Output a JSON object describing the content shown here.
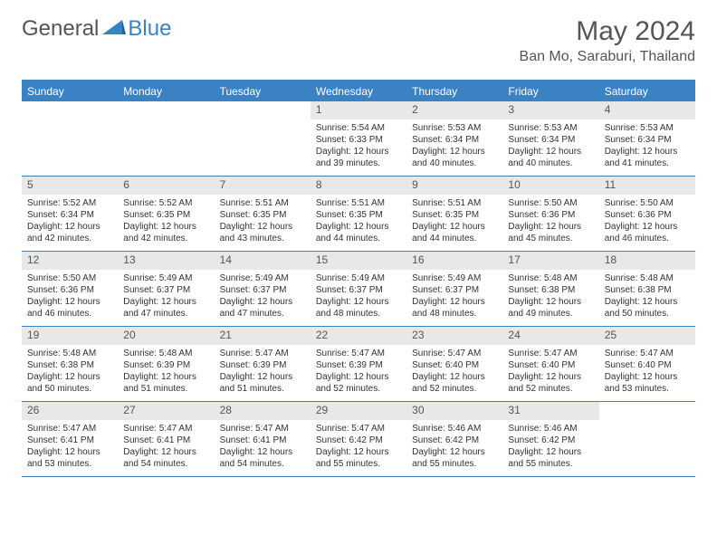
{
  "logo": {
    "textGeneral": "General",
    "textBlue": "Blue"
  },
  "title": "May 2024",
  "location": "Ban Mo, Saraburi, Thailand",
  "colors": {
    "accent": "#3b82c4",
    "dayHeaderBg": "#e8e8e8",
    "text": "#333333",
    "headerText": "#555555",
    "white": "#ffffff"
  },
  "weekdays": [
    "Sunday",
    "Monday",
    "Tuesday",
    "Wednesday",
    "Thursday",
    "Friday",
    "Saturday"
  ],
  "weeks": [
    [
      null,
      null,
      null,
      {
        "n": "1",
        "sr": "5:54 AM",
        "ss": "6:33 PM",
        "dl1": "12 hours",
        "dl2": "and 39 minutes."
      },
      {
        "n": "2",
        "sr": "5:53 AM",
        "ss": "6:34 PM",
        "dl1": "12 hours",
        "dl2": "and 40 minutes."
      },
      {
        "n": "3",
        "sr": "5:53 AM",
        "ss": "6:34 PM",
        "dl1": "12 hours",
        "dl2": "and 40 minutes."
      },
      {
        "n": "4",
        "sr": "5:53 AM",
        "ss": "6:34 PM",
        "dl1": "12 hours",
        "dl2": "and 41 minutes."
      }
    ],
    [
      {
        "n": "5",
        "sr": "5:52 AM",
        "ss": "6:34 PM",
        "dl1": "12 hours",
        "dl2": "and 42 minutes."
      },
      {
        "n": "6",
        "sr": "5:52 AM",
        "ss": "6:35 PM",
        "dl1": "12 hours",
        "dl2": "and 42 minutes."
      },
      {
        "n": "7",
        "sr": "5:51 AM",
        "ss": "6:35 PM",
        "dl1": "12 hours",
        "dl2": "and 43 minutes."
      },
      {
        "n": "8",
        "sr": "5:51 AM",
        "ss": "6:35 PM",
        "dl1": "12 hours",
        "dl2": "and 44 minutes."
      },
      {
        "n": "9",
        "sr": "5:51 AM",
        "ss": "6:35 PM",
        "dl1": "12 hours",
        "dl2": "and 44 minutes."
      },
      {
        "n": "10",
        "sr": "5:50 AM",
        "ss": "6:36 PM",
        "dl1": "12 hours",
        "dl2": "and 45 minutes."
      },
      {
        "n": "11",
        "sr": "5:50 AM",
        "ss": "6:36 PM",
        "dl1": "12 hours",
        "dl2": "and 46 minutes."
      }
    ],
    [
      {
        "n": "12",
        "sr": "5:50 AM",
        "ss": "6:36 PM",
        "dl1": "12 hours",
        "dl2": "and 46 minutes."
      },
      {
        "n": "13",
        "sr": "5:49 AM",
        "ss": "6:37 PM",
        "dl1": "12 hours",
        "dl2": "and 47 minutes."
      },
      {
        "n": "14",
        "sr": "5:49 AM",
        "ss": "6:37 PM",
        "dl1": "12 hours",
        "dl2": "and 47 minutes."
      },
      {
        "n": "15",
        "sr": "5:49 AM",
        "ss": "6:37 PM",
        "dl1": "12 hours",
        "dl2": "and 48 minutes."
      },
      {
        "n": "16",
        "sr": "5:49 AM",
        "ss": "6:37 PM",
        "dl1": "12 hours",
        "dl2": "and 48 minutes."
      },
      {
        "n": "17",
        "sr": "5:48 AM",
        "ss": "6:38 PM",
        "dl1": "12 hours",
        "dl2": "and 49 minutes."
      },
      {
        "n": "18",
        "sr": "5:48 AM",
        "ss": "6:38 PM",
        "dl1": "12 hours",
        "dl2": "and 50 minutes."
      }
    ],
    [
      {
        "n": "19",
        "sr": "5:48 AM",
        "ss": "6:38 PM",
        "dl1": "12 hours",
        "dl2": "and 50 minutes."
      },
      {
        "n": "20",
        "sr": "5:48 AM",
        "ss": "6:39 PM",
        "dl1": "12 hours",
        "dl2": "and 51 minutes."
      },
      {
        "n": "21",
        "sr": "5:47 AM",
        "ss": "6:39 PM",
        "dl1": "12 hours",
        "dl2": "and 51 minutes."
      },
      {
        "n": "22",
        "sr": "5:47 AM",
        "ss": "6:39 PM",
        "dl1": "12 hours",
        "dl2": "and 52 minutes."
      },
      {
        "n": "23",
        "sr": "5:47 AM",
        "ss": "6:40 PM",
        "dl1": "12 hours",
        "dl2": "and 52 minutes."
      },
      {
        "n": "24",
        "sr": "5:47 AM",
        "ss": "6:40 PM",
        "dl1": "12 hours",
        "dl2": "and 52 minutes."
      },
      {
        "n": "25",
        "sr": "5:47 AM",
        "ss": "6:40 PM",
        "dl1": "12 hours",
        "dl2": "and 53 minutes."
      }
    ],
    [
      {
        "n": "26",
        "sr": "5:47 AM",
        "ss": "6:41 PM",
        "dl1": "12 hours",
        "dl2": "and 53 minutes."
      },
      {
        "n": "27",
        "sr": "5:47 AM",
        "ss": "6:41 PM",
        "dl1": "12 hours",
        "dl2": "and 54 minutes."
      },
      {
        "n": "28",
        "sr": "5:47 AM",
        "ss": "6:41 PM",
        "dl1": "12 hours",
        "dl2": "and 54 minutes."
      },
      {
        "n": "29",
        "sr": "5:47 AM",
        "ss": "6:42 PM",
        "dl1": "12 hours",
        "dl2": "and 55 minutes."
      },
      {
        "n": "30",
        "sr": "5:46 AM",
        "ss": "6:42 PM",
        "dl1": "12 hours",
        "dl2": "and 55 minutes."
      },
      {
        "n": "31",
        "sr": "5:46 AM",
        "ss": "6:42 PM",
        "dl1": "12 hours",
        "dl2": "and 55 minutes."
      },
      null
    ]
  ],
  "labels": {
    "sunrise": "Sunrise:",
    "sunset": "Sunset:",
    "daylight": "Daylight:"
  }
}
